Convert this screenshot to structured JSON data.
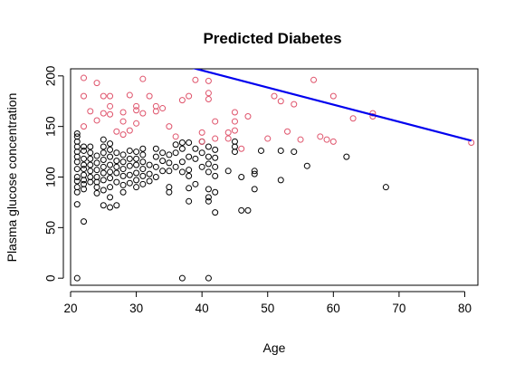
{
  "chart_data": {
    "type": "scatter",
    "title": "Predicted Diabetes",
    "xlabel": "Age",
    "ylabel": "Plasma glucose concentration",
    "xlim": [
      20,
      82
    ],
    "ylim": [
      -7,
      207
    ],
    "xticks": [
      20,
      30,
      40,
      50,
      60,
      70,
      80
    ],
    "yticks": [
      0,
      50,
      100,
      150,
      200
    ],
    "grid": false,
    "legend": "none",
    "colors": {
      "negative": "#000000",
      "positive": "#DF536B",
      "boundary": "#0000EE"
    },
    "series": [
      {
        "kind": "points",
        "color_key": "negative",
        "points": [
          [
            21,
            0
          ],
          [
            37,
            0
          ],
          [
            41,
            0
          ],
          [
            22,
            56
          ],
          [
            25,
            72
          ],
          [
            21,
            73
          ],
          [
            26,
            70
          ],
          [
            27,
            72
          ],
          [
            21,
            85
          ],
          [
            21,
            90
          ],
          [
            21,
            96
          ],
          [
            21,
            100
          ],
          [
            21,
            108
          ],
          [
            21,
            115
          ],
          [
            21,
            120
          ],
          [
            21,
            125
          ],
          [
            21,
            130
          ],
          [
            21,
            135
          ],
          [
            21,
            140
          ],
          [
            21,
            143
          ],
          [
            22,
            88
          ],
          [
            22,
            93
          ],
          [
            22,
            97
          ],
          [
            22,
            102
          ],
          [
            22,
            108
          ],
          [
            22,
            112
          ],
          [
            22,
            118
          ],
          [
            22,
            126
          ],
          [
            22,
            130
          ],
          [
            23,
            95
          ],
          [
            23,
            100
          ],
          [
            23,
            106
          ],
          [
            23,
            112
          ],
          [
            23,
            118
          ],
          [
            23,
            124
          ],
          [
            23,
            130
          ],
          [
            24,
            84
          ],
          [
            24,
            90
          ],
          [
            24,
            95
          ],
          [
            24,
            100
          ],
          [
            24,
            107
          ],
          [
            24,
            114
          ],
          [
            24,
            121
          ],
          [
            25,
            87
          ],
          [
            25,
            97
          ],
          [
            25,
            104
          ],
          [
            25,
            110
          ],
          [
            25,
            117
          ],
          [
            25,
            124
          ],
          [
            25,
            130
          ],
          [
            25,
            137
          ],
          [
            26,
            80
          ],
          [
            26,
            90
          ],
          [
            26,
            99
          ],
          [
            26,
            105
          ],
          [
            26,
            112
          ],
          [
            26,
            120
          ],
          [
            26,
            127
          ],
          [
            26,
            133
          ],
          [
            27,
            95
          ],
          [
            27,
            104
          ],
          [
            27,
            110
          ],
          [
            27,
            116
          ],
          [
            27,
            124
          ],
          [
            28,
            85
          ],
          [
            28,
            92
          ],
          [
            28,
            101
          ],
          [
            28,
            108
          ],
          [
            28,
            115
          ],
          [
            28,
            122
          ],
          [
            29,
            94
          ],
          [
            29,
            102
          ],
          [
            29,
            111
          ],
          [
            29,
            118
          ],
          [
            29,
            126
          ],
          [
            30,
            90
          ],
          [
            30,
            97
          ],
          [
            30,
            104
          ],
          [
            30,
            112
          ],
          [
            30,
            118
          ],
          [
            30,
            125
          ],
          [
            31,
            93
          ],
          [
            31,
            101
          ],
          [
            31,
            108
          ],
          [
            31,
            115
          ],
          [
            31,
            122
          ],
          [
            31,
            128
          ],
          [
            32,
            96
          ],
          [
            32,
            103
          ],
          [
            32,
            112
          ],
          [
            33,
            100
          ],
          [
            33,
            110
          ],
          [
            33,
            120
          ],
          [
            33,
            128
          ],
          [
            34,
            106
          ],
          [
            34,
            116
          ],
          [
            34,
            124
          ],
          [
            35,
            85
          ],
          [
            35,
            90
          ],
          [
            35,
            106
          ],
          [
            35,
            114
          ],
          [
            35,
            122
          ],
          [
            36,
            110
          ],
          [
            36,
            124
          ],
          [
            36,
            132
          ],
          [
            37,
            105
          ],
          [
            37,
            115
          ],
          [
            37,
            128
          ],
          [
            37,
            134
          ],
          [
            38,
            76
          ],
          [
            38,
            89
          ],
          [
            38,
            101
          ],
          [
            38,
            107
          ],
          [
            38,
            120
          ],
          [
            38,
            134
          ],
          [
            39,
            93
          ],
          [
            39,
            118
          ],
          [
            39,
            128
          ],
          [
            40,
            110
          ],
          [
            40,
            124
          ],
          [
            40,
            135
          ],
          [
            41,
            76
          ],
          [
            41,
            80
          ],
          [
            41,
            88
          ],
          [
            41,
            105
          ],
          [
            41,
            113
          ],
          [
            41,
            120
          ],
          [
            41,
            130
          ],
          [
            42,
            65
          ],
          [
            42,
            85
          ],
          [
            42,
            101
          ],
          [
            42,
            110
          ],
          [
            42,
            119
          ],
          [
            42,
            127
          ],
          [
            44,
            106
          ],
          [
            45,
            125
          ],
          [
            45,
            130
          ],
          [
            45,
            135
          ],
          [
            46,
            67
          ],
          [
            46,
            100
          ],
          [
            47,
            67
          ],
          [
            48,
            88
          ],
          [
            48,
            103
          ],
          [
            48,
            106
          ],
          [
            49,
            126
          ],
          [
            52,
            97
          ],
          [
            52,
            126
          ],
          [
            54,
            125
          ],
          [
            56,
            111
          ],
          [
            62,
            120
          ],
          [
            68,
            90
          ]
        ]
      },
      {
        "kind": "points",
        "color_key": "positive",
        "points": [
          [
            22,
            198
          ],
          [
            22,
            180
          ],
          [
            22,
            150
          ],
          [
            23,
            165
          ],
          [
            24,
            156
          ],
          [
            24,
            193
          ],
          [
            25,
            163
          ],
          [
            25,
            180
          ],
          [
            26,
            162
          ],
          [
            26,
            170
          ],
          [
            26,
            180
          ],
          [
            27,
            145
          ],
          [
            28,
            142
          ],
          [
            28,
            155
          ],
          [
            28,
            164
          ],
          [
            29,
            146
          ],
          [
            29,
            181
          ],
          [
            30,
            153
          ],
          [
            30,
            166
          ],
          [
            30,
            170
          ],
          [
            31,
            197
          ],
          [
            31,
            163
          ],
          [
            32,
            180
          ],
          [
            33,
            165
          ],
          [
            33,
            170
          ],
          [
            34,
            168
          ],
          [
            35,
            150
          ],
          [
            36,
            140
          ],
          [
            37,
            176
          ],
          [
            38,
            180
          ],
          [
            39,
            196
          ],
          [
            40,
            135
          ],
          [
            40,
            144
          ],
          [
            41,
            195
          ],
          [
            41,
            183
          ],
          [
            41,
            177
          ],
          [
            42,
            155
          ],
          [
            42,
            138
          ],
          [
            44,
            138
          ],
          [
            44,
            144
          ],
          [
            45,
            164
          ],
          [
            45,
            155
          ],
          [
            45,
            146
          ],
          [
            46,
            128
          ],
          [
            47,
            160
          ],
          [
            50,
            138
          ],
          [
            51,
            180
          ],
          [
            52,
            175
          ],
          [
            53,
            145
          ],
          [
            54,
            172
          ],
          [
            55,
            137
          ],
          [
            57,
            196
          ],
          [
            58,
            140
          ],
          [
            59,
            137
          ],
          [
            60,
            135
          ],
          [
            60,
            180
          ],
          [
            63,
            158
          ],
          [
            66,
            163
          ],
          [
            66,
            160
          ],
          [
            81,
            134
          ]
        ]
      },
      {
        "kind": "line",
        "color_key": "boundary",
        "points": [
          [
            38.5,
            208
          ],
          [
            81,
            136
          ]
        ]
      }
    ]
  }
}
